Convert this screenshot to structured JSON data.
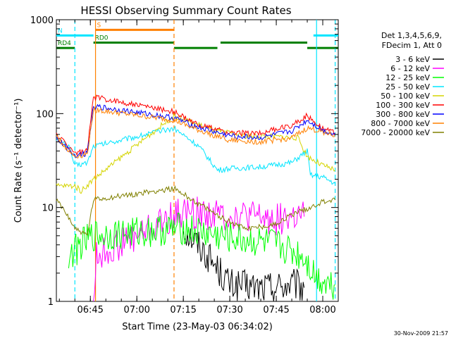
{
  "chart_data": {
    "type": "line",
    "title": "HESSI Observing Summary Count Rates",
    "xlabel": "Start Time (23-May-03 06:34:02)",
    "ylabel": "Count Rate (s⁻¹ detector⁻¹)",
    "y_scale": "log",
    "ylim": [
      1,
      1000
    ],
    "xlim": [
      "06:34:02",
      "08:05:00"
    ],
    "x_ticks": [
      "06:45",
      "07:00",
      "07:15",
      "07:30",
      "07:45",
      "08:00"
    ],
    "y_ticks": [
      "1",
      "10",
      "100",
      "1000"
    ],
    "legend_position": "right",
    "legend_header": [
      "Det 1,3,4,5,6,9,",
      "FDecim 1, Att 0"
    ],
    "timestamp": "30-Nov-2009 21:57",
    "flags": [
      {
        "label": "S",
        "color": "#ff8000",
        "segments": [
          [
            "06:46:40",
            "07:12:00"
          ]
        ],
        "value": 780
      },
      {
        "label": "N",
        "color": "#00e5ff",
        "segments": [
          [
            "06:34:02",
            "06:46:00"
          ],
          [
            "07:57:00",
            "08:05:00"
          ]
        ],
        "value": 680
      },
      {
        "label": "RD0",
        "color": "#008000",
        "segments": [
          [
            "06:46:00",
            "07:12:00"
          ],
          [
            "07:27:00",
            "07:55:00"
          ]
        ],
        "value": 570
      },
      {
        "label": "RD4",
        "color": "#008000",
        "segments": [
          [
            "06:34:02",
            "06:40:00"
          ],
          [
            "07:12:00",
            "07:26:00"
          ],
          [
            "07:55:00",
            "08:05:00"
          ]
        ],
        "value": 500
      }
    ],
    "vlines": [
      {
        "t": "06:40:00",
        "color": "#00e5ff",
        "style": "dashed"
      },
      {
        "t": "06:46:40",
        "color": "#ff8000",
        "style": "solid"
      },
      {
        "t": "07:12:00",
        "color": "#ff8000",
        "style": "dashed"
      },
      {
        "t": "07:58:00",
        "color": "#00e5ff",
        "style": "solid"
      },
      {
        "t": "08:04:00",
        "color": "#00e5ff",
        "style": "dashed"
      }
    ],
    "series": [
      {
        "name": "3 - 6 keV",
        "color": "#000000",
        "noisy": true,
        "points": [
          [
            "07:15",
            6
          ],
          [
            "07:20",
            4
          ],
          [
            "07:25",
            2.5
          ],
          [
            "07:30",
            1.5
          ],
          [
            "07:40",
            1.4
          ],
          [
            "07:50",
            1.5
          ],
          [
            "07:54",
            1.4
          ]
        ]
      },
      {
        "name": "6 - 12 keV",
        "color": "#ff00ff",
        "noisy": true,
        "points": [
          [
            "06:46",
            1
          ],
          [
            "06:47",
            3
          ],
          [
            "07:15",
            9
          ],
          [
            "07:25",
            8.5
          ],
          [
            "07:35",
            8
          ],
          [
            "07:45",
            7.5
          ],
          [
            "07:54",
            8
          ]
        ]
      },
      {
        "name": "12 - 25 keV",
        "color": "#00ff00",
        "noisy": true,
        "points": [
          [
            "06:38",
            3
          ],
          [
            "06:42",
            4
          ],
          [
            "06:46",
            5
          ],
          [
            "07:15",
            6
          ],
          [
            "07:25",
            5
          ],
          [
            "07:35",
            4.5
          ],
          [
            "07:45",
            4
          ],
          [
            "07:54",
            3
          ],
          [
            "07:58",
            1.8
          ],
          [
            "08:04",
            1.5
          ]
        ]
      },
      {
        "name": "25 - 50 keV",
        "color": "#00e5ff",
        "points": [
          [
            "06:34",
            55
          ],
          [
            "06:38",
            45
          ],
          [
            "06:40",
            28
          ],
          [
            "06:44",
            30
          ],
          [
            "06:46",
            45
          ],
          [
            "07:12",
            70
          ],
          [
            "07:20",
            45
          ],
          [
            "07:26",
            25
          ],
          [
            "07:30",
            26
          ],
          [
            "07:40",
            27
          ],
          [
            "07:50",
            30
          ],
          [
            "07:55",
            40
          ],
          [
            "07:56",
            22
          ],
          [
            "08:00",
            21
          ],
          [
            "08:04",
            18
          ]
        ]
      },
      {
        "name": "50 - 100 keV",
        "color": "#d4d400",
        "points": [
          [
            "06:34",
            17
          ],
          [
            "06:40",
            17
          ],
          [
            "06:42",
            15
          ],
          [
            "06:46",
            20
          ],
          [
            "07:12",
            95
          ],
          [
            "07:18",
            80
          ],
          [
            "07:26",
            65
          ],
          [
            "07:35",
            58
          ],
          [
            "07:45",
            57
          ],
          [
            "07:52",
            55
          ],
          [
            "07:55",
            35
          ],
          [
            "08:00",
            28
          ],
          [
            "08:04",
            25
          ]
        ]
      },
      {
        "name": "100 - 300 keV",
        "color": "#ff0000",
        "points": [
          [
            "06:34",
            60
          ],
          [
            "06:38",
            45
          ],
          [
            "06:40",
            38
          ],
          [
            "06:44",
            40
          ],
          [
            "06:46",
            150
          ],
          [
            "07:12",
            105
          ],
          [
            "07:18",
            80
          ],
          [
            "07:24",
            70
          ],
          [
            "07:30",
            62
          ],
          [
            "07:40",
            62
          ],
          [
            "07:50",
            75
          ],
          [
            "07:55",
            95
          ],
          [
            "08:00",
            70
          ],
          [
            "08:04",
            62
          ]
        ]
      },
      {
        "name": "300 - 800 keV",
        "color": "#0000ff",
        "points": [
          [
            "06:34",
            55
          ],
          [
            "06:38",
            42
          ],
          [
            "06:40",
            36
          ],
          [
            "06:44",
            38
          ],
          [
            "06:46",
            120
          ],
          [
            "07:12",
            90
          ],
          [
            "07:18",
            75
          ],
          [
            "07:24",
            65
          ],
          [
            "07:30",
            58
          ],
          [
            "07:40",
            55
          ],
          [
            "07:50",
            65
          ],
          [
            "07:55",
            85
          ],
          [
            "08:00",
            66
          ],
          [
            "08:04",
            60
          ]
        ]
      },
      {
        "name": "800 - 7000 keV",
        "color": "#ff8000",
        "points": [
          [
            "06:34",
            58
          ],
          [
            "06:38",
            40
          ],
          [
            "06:40",
            35
          ],
          [
            "06:44",
            37
          ],
          [
            "06:46",
            110
          ],
          [
            "07:12",
            85
          ],
          [
            "07:18",
            70
          ],
          [
            "07:24",
            60
          ],
          [
            "07:30",
            52
          ],
          [
            "07:40",
            50
          ],
          [
            "07:50",
            55
          ],
          [
            "07:55",
            70
          ],
          [
            "08:00",
            64
          ],
          [
            "08:04",
            58
          ]
        ]
      },
      {
        "name": "7000 - 20000 keV",
        "color": "#808000",
        "points": [
          [
            "06:34",
            12
          ],
          [
            "06:38",
            8
          ],
          [
            "06:40",
            6
          ],
          [
            "06:44",
            5
          ],
          [
            "06:46",
            12
          ],
          [
            "07:12",
            16
          ],
          [
            "07:18",
            12
          ],
          [
            "07:24",
            9
          ],
          [
            "07:30",
            7
          ],
          [
            "07:36",
            6
          ],
          [
            "07:44",
            6.5
          ],
          [
            "07:52",
            9
          ],
          [
            "07:56",
            10
          ],
          [
            "08:00",
            11.5
          ],
          [
            "08:04",
            12
          ]
        ]
      }
    ]
  }
}
